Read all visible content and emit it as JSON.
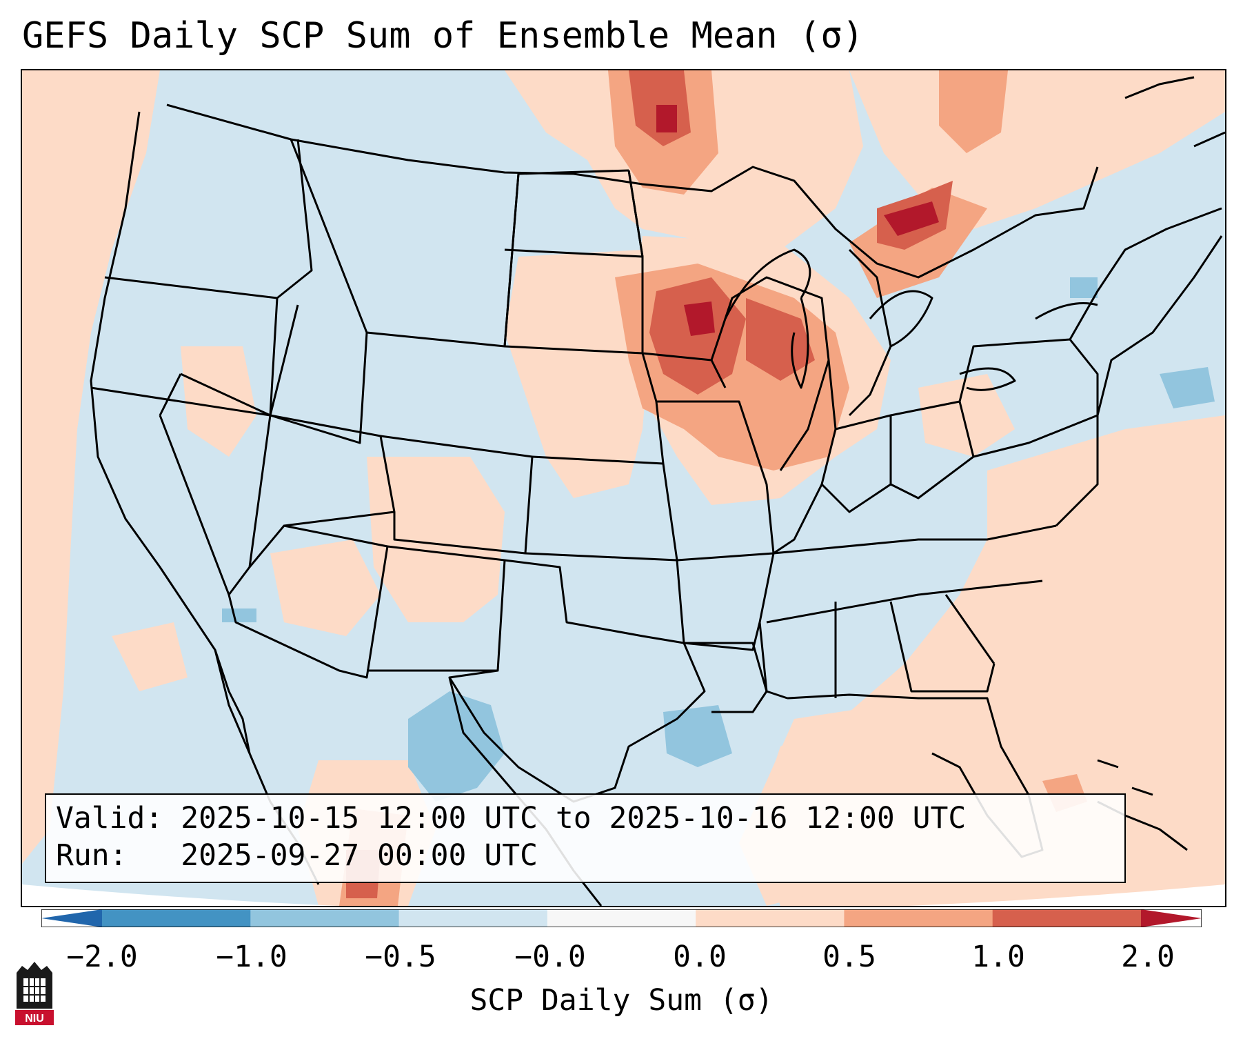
{
  "title": "GEFS Daily SCP Sum of Ensemble Mean (σ)",
  "info": {
    "valid_line": "Valid: 2025-10-15 12:00 UTC to 2025-10-16 12:00 UTC",
    "run_line": "Run:   2025-09-27 00:00 UTC"
  },
  "colorbar": {
    "label": "SCP Daily Sum (σ)",
    "ticks": [
      "−2.0",
      "−1.0",
      "−0.5",
      "−0.0",
      "0.0",
      "0.5",
      "1.0",
      "2.0"
    ],
    "bins": [
      {
        "range": "< -2.0",
        "color": "#2166ac"
      },
      {
        "range": "-2.0 to -1.0",
        "color": "#4393c3"
      },
      {
        "range": "-1.0 to -0.5",
        "color": "#92c5de"
      },
      {
        "range": "-0.5 to -0.0",
        "color": "#d1e5f0"
      },
      {
        "range": "-0.0 to 0.0",
        "color": "#f7f7f7"
      },
      {
        "range": "0.0 to 0.5",
        "color": "#fddbc7"
      },
      {
        "range": "0.5 to 1.0",
        "color": "#f4a582"
      },
      {
        "range": "1.0 to 2.0",
        "color": "#d6604d"
      },
      {
        "range": "> 2.0",
        "color": "#b2182b"
      }
    ]
  },
  "map": {
    "region": "Contiguous United States",
    "field": "SCP daily sum anomaly",
    "colors": {
      "neutral_neg": "#d1e5f0",
      "light_pos": "#fddbc7",
      "mid_pos": "#f4a582",
      "strong_pos": "#d6604d",
      "max_pos": "#b2182b",
      "light_neg": "#92c5de",
      "outside_domain": "#ffffff",
      "borders": "#000000"
    }
  },
  "logo": {
    "text": "NIU",
    "accent": "#c8102e"
  }
}
